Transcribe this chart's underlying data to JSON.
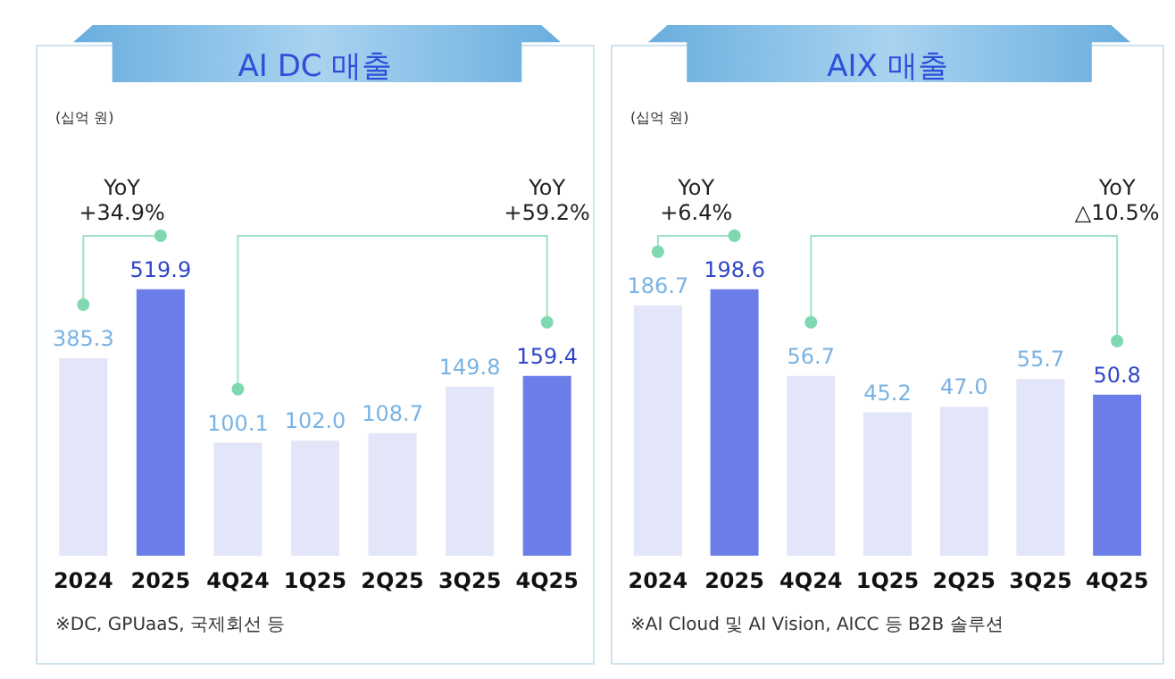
{
  "chart_data": [
    {
      "type": "bar",
      "title": "AI DC 매출",
      "categories": [
        "2024",
        "2025",
        "4Q24",
        "1Q25",
        "2Q25",
        "3Q25",
        "4Q25"
      ],
      "series": [
        {
          "values": [
            385.3,
            519.9,
            null,
            null,
            null,
            null,
            null
          ],
          "value_labels": [
            "385.3",
            "519.9",
            null,
            null,
            null,
            null,
            null
          ],
          "colors": [
            "#e3e5f8",
            "#6b7de8",
            null,
            null,
            null,
            null,
            null
          ]
        },
        {
          "axis": "y2",
          "values": [
            null,
            null,
            100.1,
            102.0,
            108.7,
            149.8,
            159.4
          ],
          "value_labels": [
            null,
            null,
            "100.1",
            "102.0",
            "108.7",
            "149.8",
            "159.4"
          ],
          "colors": [
            null,
            null,
            "#e3e5f8",
            "#e3e5f8",
            "#e3e5f8",
            "#e3e5f8",
            "#6b7de8"
          ]
        }
      ],
      "annotations": [
        "YoY\n+34.9%",
        "YoY\n+59.2%",
        "(십억 원)",
        "※DC, GPUaaS, 국제회선 등"
      ]
    },
    {
      "type": "bar",
      "title": "AIX 매출",
      "categories": [
        "2024",
        "2025",
        "4Q24",
        "1Q25",
        "2Q25",
        "3Q25",
        "4Q25"
      ],
      "series": [
        {
          "values": [
            186.7,
            198.6,
            null,
            null,
            null,
            null,
            null
          ],
          "value_labels": [
            "186.7",
            "198.6",
            null,
            null,
            null,
            null,
            null
          ],
          "colors": [
            "#e3e5f8",
            "#6b7de8",
            null,
            null,
            null,
            null,
            null
          ]
        },
        {
          "axis": "y2",
          "values": [
            null,
            null,
            56.7,
            45.2,
            47.0,
            55.7,
            50.8
          ],
          "value_labels": [
            null,
            null,
            "56.7",
            "45.2",
            "47.0",
            "55.7",
            "50.8"
          ],
          "colors": [
            null,
            null,
            "#e3e5f8",
            "#e3e5f8",
            "#e3e5f8",
            "#e3e5f8",
            "#6b7de8"
          ]
        }
      ],
      "annotations": [
        "YoY\n+6.4%",
        "YoY\n△10.5%",
        "(십억 원)",
        "※AI Cloud 및 AI Vision, AICC 등 B2B 솔루션"
      ]
    }
  ]
}
